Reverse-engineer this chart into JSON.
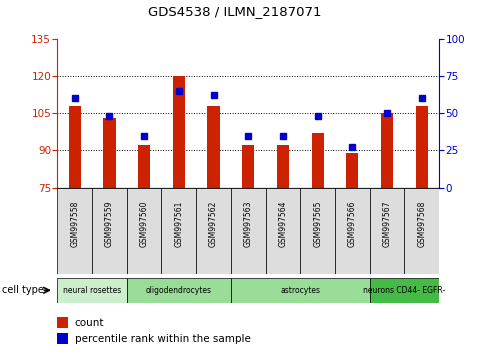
{
  "title": "GDS4538 / ILMN_2187071",
  "samples": [
    "GSM997558",
    "GSM997559",
    "GSM997560",
    "GSM997561",
    "GSM997562",
    "GSM997563",
    "GSM997564",
    "GSM997565",
    "GSM997566",
    "GSM997567",
    "GSM997568"
  ],
  "bar_values": [
    108,
    103,
    92,
    120,
    108,
    92,
    92,
    97,
    89,
    105,
    108
  ],
  "percentile_values": [
    60,
    48,
    35,
    65,
    62,
    35,
    35,
    48,
    27,
    50,
    60
  ],
  "bar_bottom": 75,
  "ylim_left": [
    75,
    135
  ],
  "ylim_right": [
    0,
    100
  ],
  "yticks_left": [
    75,
    90,
    105,
    120,
    135
  ],
  "yticks_right": [
    0,
    25,
    50,
    75,
    100
  ],
  "bar_color": "#cc2200",
  "dot_color": "#0000cc",
  "grid_lines": [
    90,
    105,
    120
  ],
  "cell_groups": [
    {
      "label": "neural rosettes",
      "start": 0,
      "end": 2,
      "color": "#cceecc"
    },
    {
      "label": "oligodendrocytes",
      "start": 2,
      "end": 5,
      "color": "#99dd99"
    },
    {
      "label": "astrocytes",
      "start": 5,
      "end": 9,
      "color": "#99dd99"
    },
    {
      "label": "neurons CD44- EGFR-",
      "start": 9,
      "end": 11,
      "color": "#44bb44"
    }
  ],
  "left_tick_color": "#cc2200",
  "right_tick_color": "#0000cc",
  "bar_width": 0.35,
  "marker_size": 4
}
